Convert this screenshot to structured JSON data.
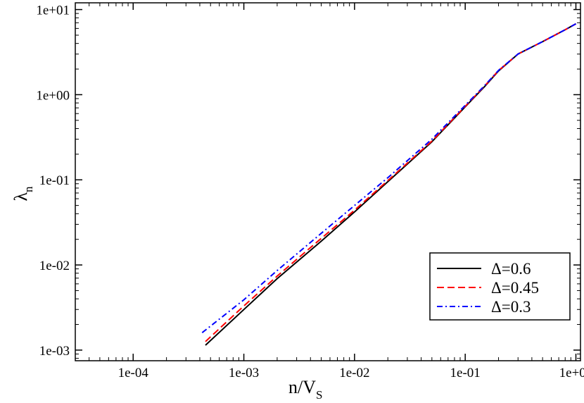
{
  "chart_data": {
    "type": "line",
    "title": "",
    "xlabel": {
      "main": "n/V",
      "sub": "S"
    },
    "ylabel": {
      "main": "λ",
      "sub": "n"
    },
    "x_scale": "log",
    "y_scale": "log",
    "xlim": [
      3e-05,
      1.1
    ],
    "ylim": [
      0.00075,
      12
    ],
    "x_ticks": [
      {
        "value": 0.0001,
        "label": "1e-04"
      },
      {
        "value": 0.001,
        "label": "1e-03"
      },
      {
        "value": 0.01,
        "label": "1e-02"
      },
      {
        "value": 0.1,
        "label": "1e-01"
      },
      {
        "value": 1,
        "label": "1e+00"
      }
    ],
    "y_ticks": [
      {
        "value": 0.001,
        "label": "1e-03"
      },
      {
        "value": 0.01,
        "label": "1e-02"
      },
      {
        "value": 0.1,
        "label": "1e-01"
      },
      {
        "value": 1,
        "label": "1e+00"
      },
      {
        "value": 10,
        "label": "1e+01"
      }
    ],
    "grid": false,
    "legend_position": "bottom-right",
    "series": [
      {
        "name": "Δ=0.6",
        "color": "#000000",
        "dash": "solid",
        "x": [
          0.00045,
          0.001,
          0.002,
          0.005,
          0.01,
          0.02,
          0.05,
          0.1,
          0.15,
          0.2,
          0.3,
          0.5,
          0.8,
          1.0
        ],
        "y": [
          0.00114,
          0.003,
          0.0069,
          0.019,
          0.042,
          0.095,
          0.28,
          0.72,
          1.25,
          1.9,
          3.0,
          4.2,
          5.8,
          6.8
        ]
      },
      {
        "name": "Δ=0.45",
        "color": "#ff0000",
        "dash": "dashed",
        "x": [
          0.00045,
          0.001,
          0.002,
          0.005,
          0.01,
          0.02,
          0.05,
          0.1,
          0.15,
          0.2,
          0.3,
          0.5,
          0.8,
          1.0
        ],
        "y": [
          0.00126,
          0.0033,
          0.0074,
          0.0205,
          0.044,
          0.098,
          0.285,
          0.73,
          1.27,
          1.92,
          3.0,
          4.2,
          5.8,
          6.8
        ]
      },
      {
        "name": "Δ=0.3",
        "color": "#0000ff",
        "dash": "dashdot",
        "x": [
          0.00042,
          0.001,
          0.002,
          0.005,
          0.01,
          0.02,
          0.05,
          0.1,
          0.15,
          0.2,
          0.3,
          0.5,
          0.8,
          1.0
        ],
        "y": [
          0.0016,
          0.0039,
          0.0086,
          0.0235,
          0.05,
          0.106,
          0.3,
          0.75,
          1.28,
          1.93,
          3.0,
          4.2,
          5.8,
          6.8
        ]
      }
    ]
  }
}
